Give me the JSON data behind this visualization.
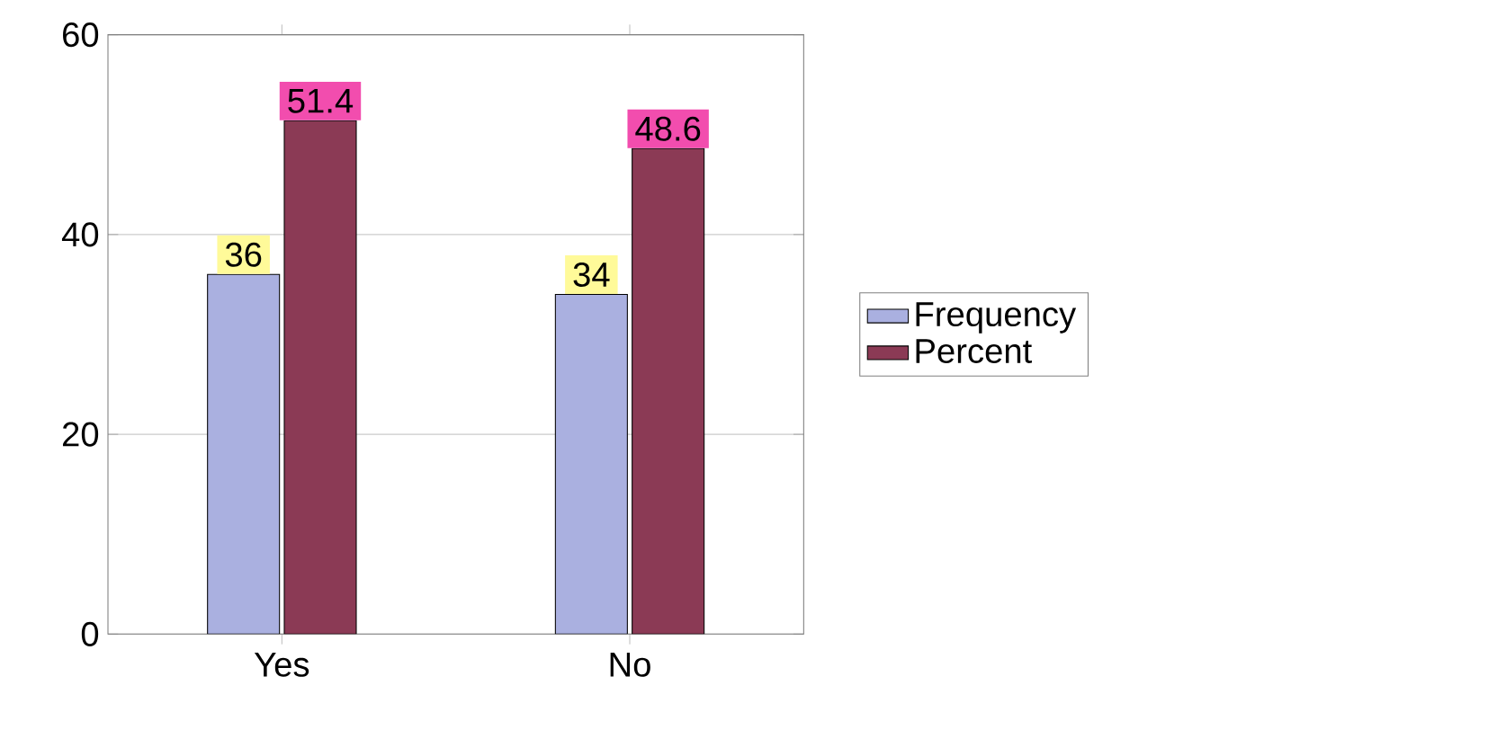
{
  "chart_data": {
    "type": "bar",
    "categories": [
      "Yes",
      "No"
    ],
    "series": [
      {
        "name": "Frequency",
        "color": "#aab0e0",
        "values": [
          36,
          34
        ]
      },
      {
        "name": "Percent",
        "color": "#8b3a55",
        "values": [
          51.4,
          48.6
        ]
      }
    ],
    "ylim": [
      0,
      60
    ],
    "yticks": [
      0,
      20,
      40,
      60
    ],
    "grid": "y",
    "legend": "right",
    "data_labels": true
  }
}
